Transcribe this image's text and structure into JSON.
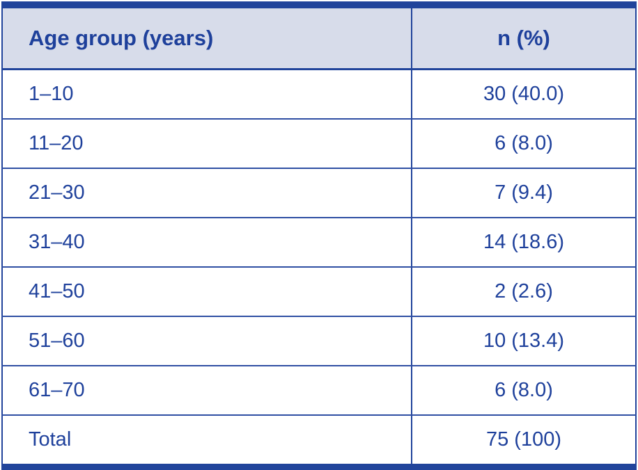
{
  "colors": {
    "rule_dark_blue": "#21449B",
    "separator_blue": "#2E4EA3",
    "header_background": "#D7DCEA",
    "text_blue": "#1E409B",
    "row_background": "#FFFFFF"
  },
  "table": {
    "columns": [
      {
        "label": "Age group (years)",
        "align": "left"
      },
      {
        "label": "n (%)",
        "align": "center"
      }
    ],
    "rows": [
      {
        "age_group": "1–10",
        "n_pct": "30 (40.0)"
      },
      {
        "age_group": "11–20",
        "n_pct": "6 (8.0)"
      },
      {
        "age_group": "21–30",
        "n_pct": "7 (9.4)"
      },
      {
        "age_group": "31–40",
        "n_pct": "14 (18.6)"
      },
      {
        "age_group": "41–50",
        "n_pct": "2 (2.6)"
      },
      {
        "age_group": "51–60",
        "n_pct": "10 (13.4)"
      },
      {
        "age_group": "61–70",
        "n_pct": "6 (8.0)"
      },
      {
        "age_group": "Total",
        "n_pct": "75 (100)"
      }
    ]
  },
  "chart_data": {
    "type": "table",
    "title": "",
    "categories": [
      "1–10",
      "11–20",
      "21–30",
      "31–40",
      "41–50",
      "51–60",
      "61–70",
      "Total"
    ],
    "series": [
      {
        "name": "n",
        "values": [
          30,
          6,
          7,
          14,
          2,
          10,
          6,
          75
        ]
      },
      {
        "name": "%",
        "values": [
          40.0,
          8.0,
          9.4,
          18.6,
          2.6,
          13.4,
          8.0,
          100
        ]
      }
    ]
  }
}
